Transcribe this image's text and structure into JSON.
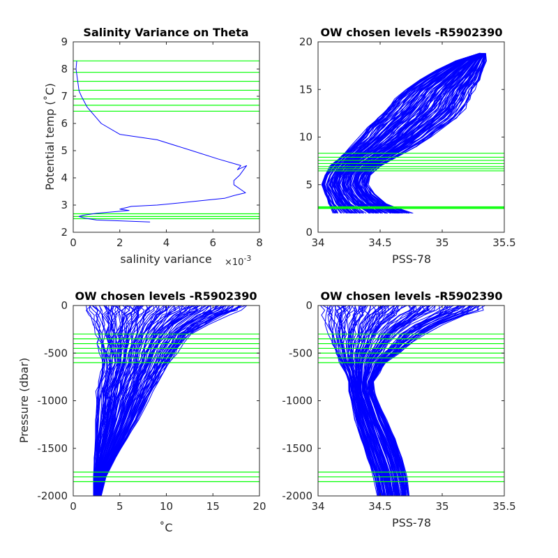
{
  "level_color": "#00ff00",
  "profile_color": "#0000ff",
  "chart_data": [
    {
      "type": "line",
      "title": "Salinity Variance on Theta",
      "xlabel": "salinity variance",
      "x_exponent_base": "×10",
      "x_exponent_power": "-3",
      "ylabel": "Potential temp (˚C)",
      "xlim": [
        0,
        8
      ],
      "ylim": [
        2,
        9
      ],
      "xticks": [
        0,
        2,
        4,
        6,
        8
      ],
      "xtick_labels": [
        "0",
        "2",
        "4",
        "6",
        "8"
      ],
      "yticks": [
        2,
        3,
        4,
        5,
        6,
        7,
        8,
        9
      ],
      "ytick_labels": [
        "2",
        "3",
        "4",
        "5",
        "6",
        "7",
        "8",
        "9"
      ],
      "series": [
        {
          "x": [
            0.15,
            0.12,
            0.2,
            0.25,
            0.35,
            0.6,
            1.0,
            1.2,
            2.0,
            3.6,
            5.1,
            6.2,
            7.2,
            7.05,
            7.45,
            7.15,
            6.9,
            6.9,
            7.4,
            6.9,
            6.5,
            4.2,
            3.6,
            2.5,
            2.0,
            2.4,
            1.0,
            0.4,
            0.25,
            0.5,
            1.0,
            2.0,
            3.3
          ],
          "y": [
            8.3,
            8.0,
            7.5,
            7.2,
            7.0,
            6.6,
            6.2,
            6.0,
            5.6,
            5.4,
            5.0,
            4.7,
            4.45,
            4.3,
            4.45,
            4.1,
            3.9,
            3.75,
            3.45,
            3.35,
            3.25,
            3.05,
            3.0,
            2.95,
            2.85,
            2.8,
            2.7,
            2.62,
            2.58,
            2.52,
            2.45,
            2.42,
            2.38
          ]
        }
      ],
      "levels": [
        2.5,
        2.58,
        2.68,
        6.45,
        6.67,
        6.9,
        7.22,
        7.55,
        7.88,
        8.3
      ]
    },
    {
      "type": "line",
      "title": "OW chosen levels -R5902390",
      "xlabel": "PSS-78",
      "ylabel": "",
      "xlim": [
        34,
        35.5
      ],
      "ylim": [
        0,
        20
      ],
      "xticks": [
        34,
        34.5,
        35,
        35.5
      ],
      "xtick_labels": [
        "34",
        "34.5",
        "35",
        "35.5"
      ],
      "yticks": [
        0,
        5,
        10,
        15,
        20
      ],
      "ytick_labels": [
        "0",
        "5",
        "10",
        "15",
        "20"
      ],
      "profile_count": 120,
      "envelope": {
        "y": [
          2.0,
          3.0,
          4.0,
          5.0,
          6.0,
          7.0,
          8.0,
          9.0,
          10.0,
          11.0,
          12.0,
          13.0,
          14.0,
          15.0,
          16.0,
          17.0,
          18.0,
          18.8
        ],
        "x_min": [
          34.12,
          34.08,
          34.05,
          34.02,
          34.05,
          34.1,
          34.18,
          34.26,
          34.34,
          34.4,
          34.48,
          34.55,
          34.62,
          34.7,
          34.82,
          34.95,
          35.1,
          35.3
        ],
        "x_max": [
          34.75,
          34.55,
          34.45,
          34.4,
          34.42,
          34.5,
          34.65,
          34.78,
          34.9,
          35.0,
          35.1,
          35.18,
          35.22,
          35.25,
          35.3,
          35.33,
          35.35,
          35.35
        ]
      },
      "levels": [
        2.5,
        2.58,
        2.68,
        6.45,
        6.67,
        6.9,
        7.22,
        7.55,
        7.88,
        8.3
      ]
    },
    {
      "type": "line",
      "title": "OW chosen levels -R5902390",
      "xlabel": "˚C",
      "ylabel": "Pressure (dbar)",
      "xlim": [
        0,
        20
      ],
      "ylim": [
        -2000,
        0
      ],
      "xticks": [
        0,
        5,
        10,
        15,
        20
      ],
      "xtick_labels": [
        "0",
        "5",
        "10",
        "15",
        "20"
      ],
      "yticks": [
        -2000,
        -1500,
        -1000,
        -500,
        0
      ],
      "ytick_labels": [
        "-2000",
        "-1500",
        "-1000",
        "-500",
        "0"
      ],
      "profile_count": 120,
      "envelope": {
        "p": [
          0,
          -50,
          -100,
          -200,
          -300,
          -400,
          -500,
          -600,
          -700,
          -800,
          -900,
          -1000,
          -1200,
          -1400,
          -1600,
          -1800,
          -2000
        ],
        "x_min": [
          1.5,
          1.8,
          2.0,
          2.4,
          2.6,
          2.8,
          3.0,
          3.2,
          3.0,
          2.8,
          2.6,
          2.6,
          2.5,
          2.4,
          2.3,
          2.2,
          2.2
        ],
        "x_max": [
          18.8,
          18.0,
          16.5,
          14.5,
          12.8,
          11.8,
          11.0,
          10.4,
          9.8,
          9.2,
          8.6,
          8.0,
          7.0,
          5.8,
          4.5,
          3.5,
          3.0
        ]
      },
      "levels": [
        -300,
        -350,
        -400,
        -450,
        -500,
        -550,
        -600,
        -1750,
        -1800,
        -1850
      ]
    },
    {
      "type": "line",
      "title": "OW chosen levels -R5902390",
      "xlabel": "PSS-78",
      "ylabel": "",
      "xlim": [
        34,
        35.5
      ],
      "ylim": [
        -2000,
        0
      ],
      "xticks": [
        34,
        34.5,
        35,
        35.5
      ],
      "xtick_labels": [
        "34",
        "34.5",
        "35",
        "35.5"
      ],
      "yticks": [
        -2000,
        -1500,
        -1000,
        -500,
        0
      ],
      "ytick_labels": [
        "-2000",
        "-1500",
        "-1000",
        "-500",
        "0"
      ],
      "profile_count": 120,
      "envelope": {
        "p": [
          0,
          -50,
          -100,
          -200,
          -300,
          -400,
          -500,
          -600,
          -700,
          -800,
          -900,
          -1000,
          -1200,
          -1400,
          -1600,
          -1800,
          -2000
        ],
        "x_min": [
          34.05,
          34.05,
          34.06,
          34.08,
          34.1,
          34.12,
          34.15,
          34.18,
          34.22,
          34.25,
          34.25,
          34.27,
          34.3,
          34.35,
          34.4,
          34.45,
          34.48
        ],
        "x_max": [
          35.35,
          35.3,
          35.2,
          35.0,
          34.85,
          34.75,
          34.65,
          34.55,
          34.5,
          34.45,
          34.45,
          34.48,
          34.55,
          34.62,
          34.68,
          34.72,
          34.74
        ]
      },
      "levels": [
        -300,
        -350,
        -400,
        -450,
        -500,
        -550,
        -600,
        -1750,
        -1800,
        -1850
      ]
    }
  ]
}
